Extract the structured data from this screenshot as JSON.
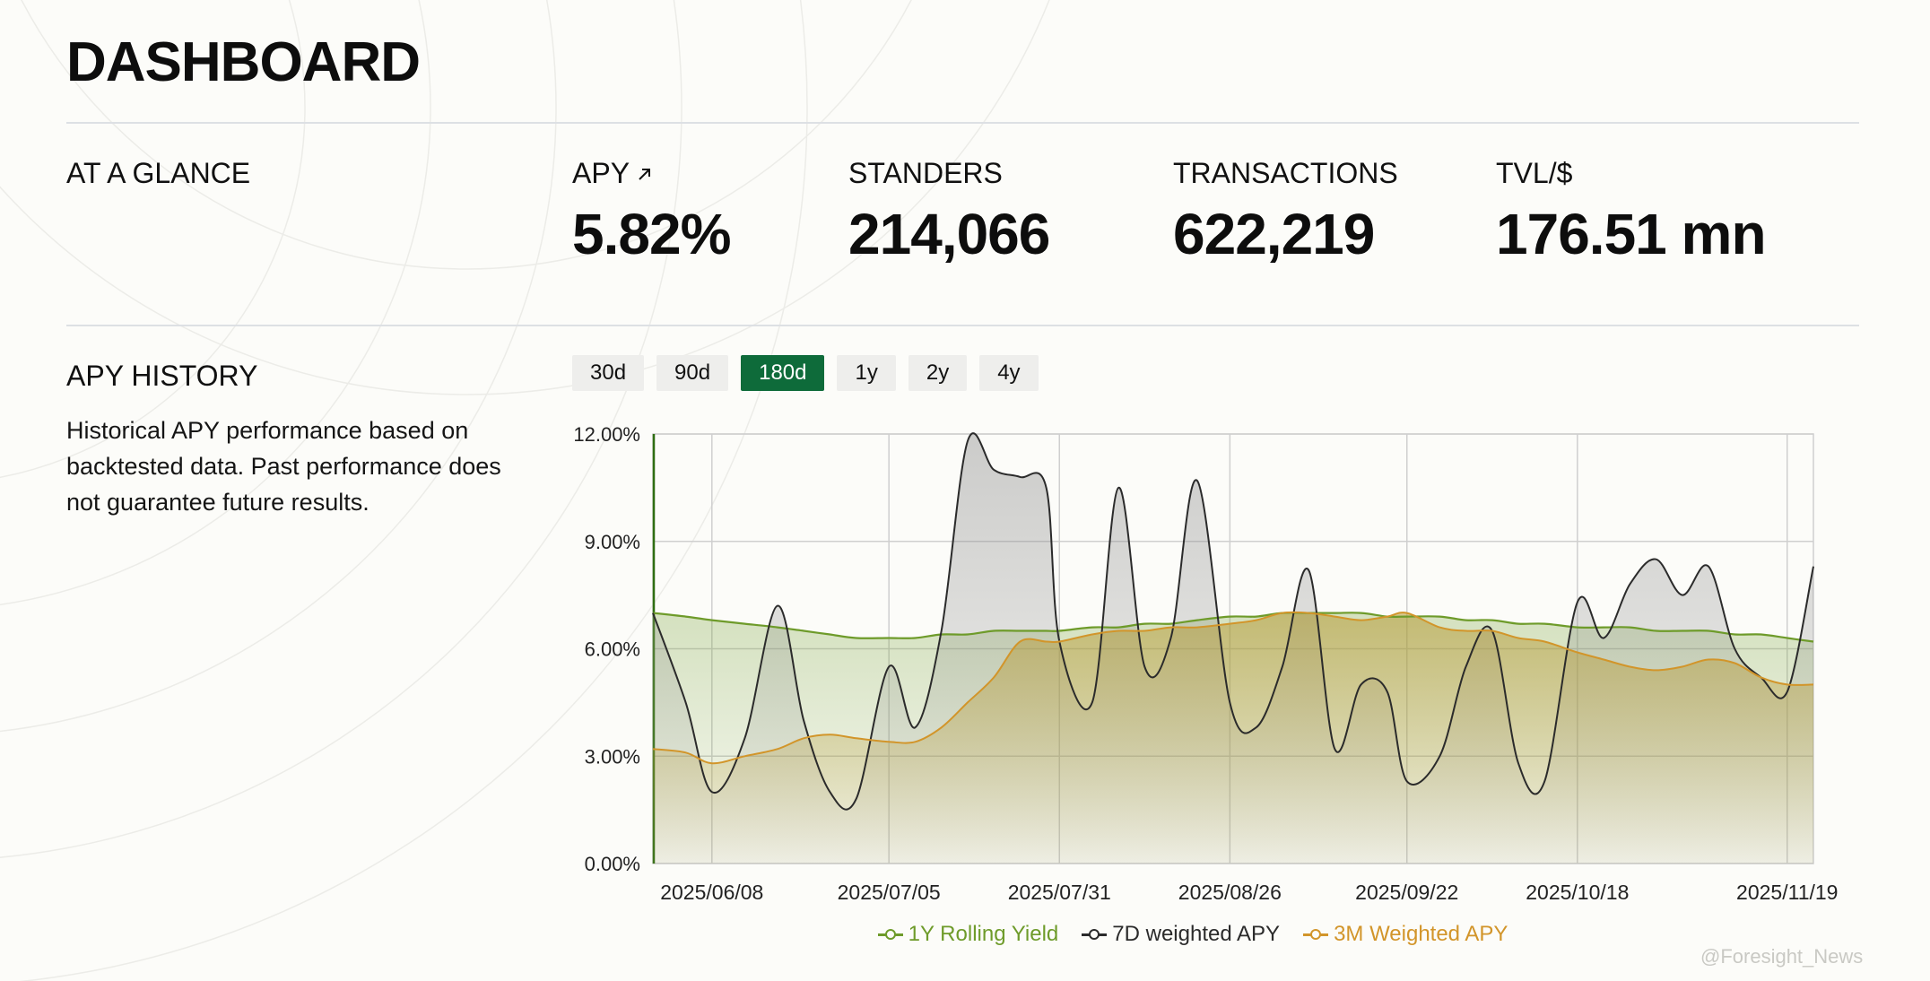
{
  "page": {
    "title": "DASHBOARD",
    "glance_label": "AT A GLANCE",
    "watermark": "@Foresight_News"
  },
  "stats": [
    {
      "label": "APY",
      "value": "5.82%",
      "icon": "arrow-up-right-icon"
    },
    {
      "label": "STANDERS",
      "value": "214,066"
    },
    {
      "label": "TRANSACTIONS",
      "value": "622,219"
    },
    {
      "label": "TVL/$",
      "value": "176.51 mn"
    }
  ],
  "history": {
    "title": "APY HISTORY",
    "description": "Historical APY performance based on backtested data. Past performance does not guarantee future results.",
    "ranges": [
      "30d",
      "90d",
      "180d",
      "1y",
      "2y",
      "4y"
    ],
    "active_range": "180d"
  },
  "colors": {
    "accent": "#0e6b3a",
    "rolling": "#6e9b2a",
    "weighted7d": "#2b2b2b",
    "weighted3m": "#d2952a"
  },
  "chart_data": {
    "type": "line",
    "x": [
      "2025/05/30",
      "2025/06/04",
      "2025/06/08",
      "2025/06/13",
      "2025/06/18",
      "2025/06/22",
      "2025/06/26",
      "2025/06/30",
      "2025/07/05",
      "2025/07/09",
      "2025/07/13",
      "2025/07/17",
      "2025/07/21",
      "2025/07/25",
      "2025/07/29",
      "2025/07/31",
      "2025/08/05",
      "2025/08/09",
      "2025/08/13",
      "2025/08/17",
      "2025/08/21",
      "2025/08/26",
      "2025/08/30",
      "2025/09/03",
      "2025/09/07",
      "2025/09/11",
      "2025/09/15",
      "2025/09/19",
      "2025/09/22",
      "2025/09/27",
      "2025/10/01",
      "2025/10/05",
      "2025/10/09",
      "2025/10/13",
      "2025/10/18",
      "2025/10/22",
      "2025/10/26",
      "2025/10/30",
      "2025/11/03",
      "2025/11/07",
      "2025/11/11",
      "2025/11/15",
      "2025/11/19",
      "2025/11/23"
    ],
    "x_ticks": [
      "2025/06/08",
      "2025/07/05",
      "2025/07/31",
      "2025/08/26",
      "2025/09/22",
      "2025/10/18",
      "2025/11/19"
    ],
    "y_ticks": [
      "0.00%",
      "3.00%",
      "6.00%",
      "9.00%",
      "12.00%"
    ],
    "ylim": [
      0,
      12
    ],
    "grid": true,
    "legend_position": "bottom",
    "series": [
      {
        "name": "1Y Rolling Yield",
        "values": [
          7.0,
          6.9,
          6.8,
          6.7,
          6.6,
          6.5,
          6.4,
          6.3,
          6.3,
          6.3,
          6.4,
          6.4,
          6.5,
          6.5,
          6.5,
          6.5,
          6.6,
          6.6,
          6.7,
          6.7,
          6.8,
          6.9,
          6.9,
          7.0,
          7.0,
          7.0,
          7.0,
          6.9,
          6.9,
          6.9,
          6.8,
          6.8,
          6.7,
          6.7,
          6.6,
          6.6,
          6.6,
          6.5,
          6.5,
          6.5,
          6.4,
          6.4,
          6.3,
          6.2
        ]
      },
      {
        "name": "7D weighted APY",
        "values": [
          7.0,
          4.5,
          2.0,
          3.5,
          7.2,
          4.0,
          2.0,
          1.8,
          5.5,
          3.8,
          6.5,
          11.8,
          11.0,
          10.8,
          10.5,
          6.2,
          4.5,
          10.5,
          5.5,
          6.3,
          10.7,
          4.5,
          3.8,
          5.5,
          8.2,
          3.2,
          5.0,
          4.8,
          2.3,
          3.0,
          5.5,
          6.5,
          2.8,
          2.3,
          7.3,
          6.3,
          7.8,
          8.5,
          7.5,
          8.3,
          6.0,
          5.2,
          4.8,
          8.3
        ]
      },
      {
        "name": "3M Weighted APY",
        "values": [
          3.2,
          3.1,
          2.8,
          3.0,
          3.2,
          3.5,
          3.6,
          3.5,
          3.4,
          3.4,
          3.8,
          4.5,
          5.2,
          6.2,
          6.2,
          6.2,
          6.4,
          6.5,
          6.5,
          6.6,
          6.6,
          6.7,
          6.8,
          7.0,
          7.0,
          6.9,
          6.8,
          6.9,
          7.0,
          6.6,
          6.5,
          6.5,
          6.3,
          6.2,
          5.9,
          5.7,
          5.5,
          5.4,
          5.5,
          5.7,
          5.6,
          5.2,
          5.0,
          5.0
        ]
      }
    ]
  }
}
